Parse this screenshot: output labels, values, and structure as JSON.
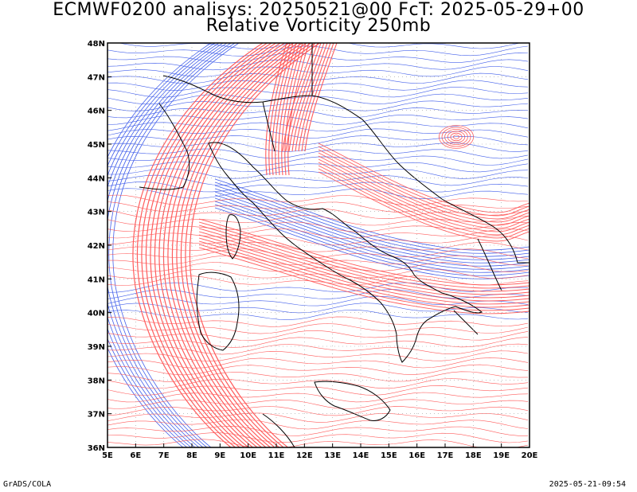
{
  "title_line1": "ECMWF0200 analisys: 20250521@00 FcT: 2025-05-29+00",
  "title_line2": "Relative Vorticity 250mb",
  "footer_left": "GrADS/COLA",
  "footer_right": "2025-05-21-09:54",
  "axes": {
    "lon_labels": [
      "5E",
      "6E",
      "7E",
      "8E",
      "9E",
      "10E",
      "11E",
      "12E",
      "13E",
      "14E",
      "15E",
      "16E",
      "17E",
      "18E",
      "19E",
      "20E"
    ],
    "lat_labels": [
      "36N",
      "37N",
      "38N",
      "39N",
      "40N",
      "41N",
      "42N",
      "43N",
      "44N",
      "45N",
      "46N",
      "47N",
      "48N"
    ],
    "lon_range": [
      5,
      20
    ],
    "lat_range": [
      36,
      48
    ]
  },
  "colors": {
    "positive_vorticity": "#ff4b4b",
    "negative_vorticity": "#2f4fe8",
    "coastline": "#000000",
    "grid": "#9a9a9a"
  }
}
